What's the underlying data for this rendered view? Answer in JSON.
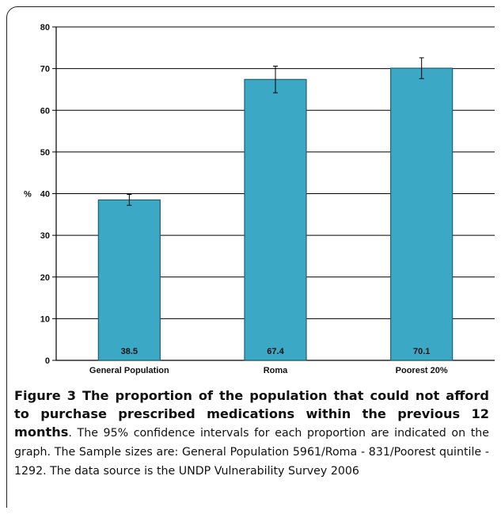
{
  "chart_data": {
    "type": "bar",
    "categories": [
      "General Population",
      "Roma",
      "Poorest 20%"
    ],
    "values": [
      38.5,
      67.4,
      70.1
    ],
    "data_labels": [
      "38.5",
      "67.4",
      "70.1"
    ],
    "error_bars": [
      {
        "low": 37.2,
        "high": 39.8
      },
      {
        "low": 64.2,
        "high": 70.6
      },
      {
        "low": 67.6,
        "high": 72.6
      }
    ],
    "ylabel": "%",
    "ylim": [
      0,
      80
    ],
    "yticks": [
      0,
      10,
      20,
      30,
      40,
      50,
      60,
      70,
      80
    ],
    "grid": true,
    "bar_color": "#3ba9c6",
    "bar_edge_color": "#1f5f73"
  },
  "caption": {
    "title": "Figure 3 The proportion of the population that could not afford to purchase prescribed medications within the previous 12 months",
    "text": ". The 95% confidence intervals for each proportion are indicated on the graph. The Sample sizes are: General Population 5961/Roma - 831/Poorest quintile - 1292. The data source is the UNDP Vulnerability Survey 2006"
  }
}
